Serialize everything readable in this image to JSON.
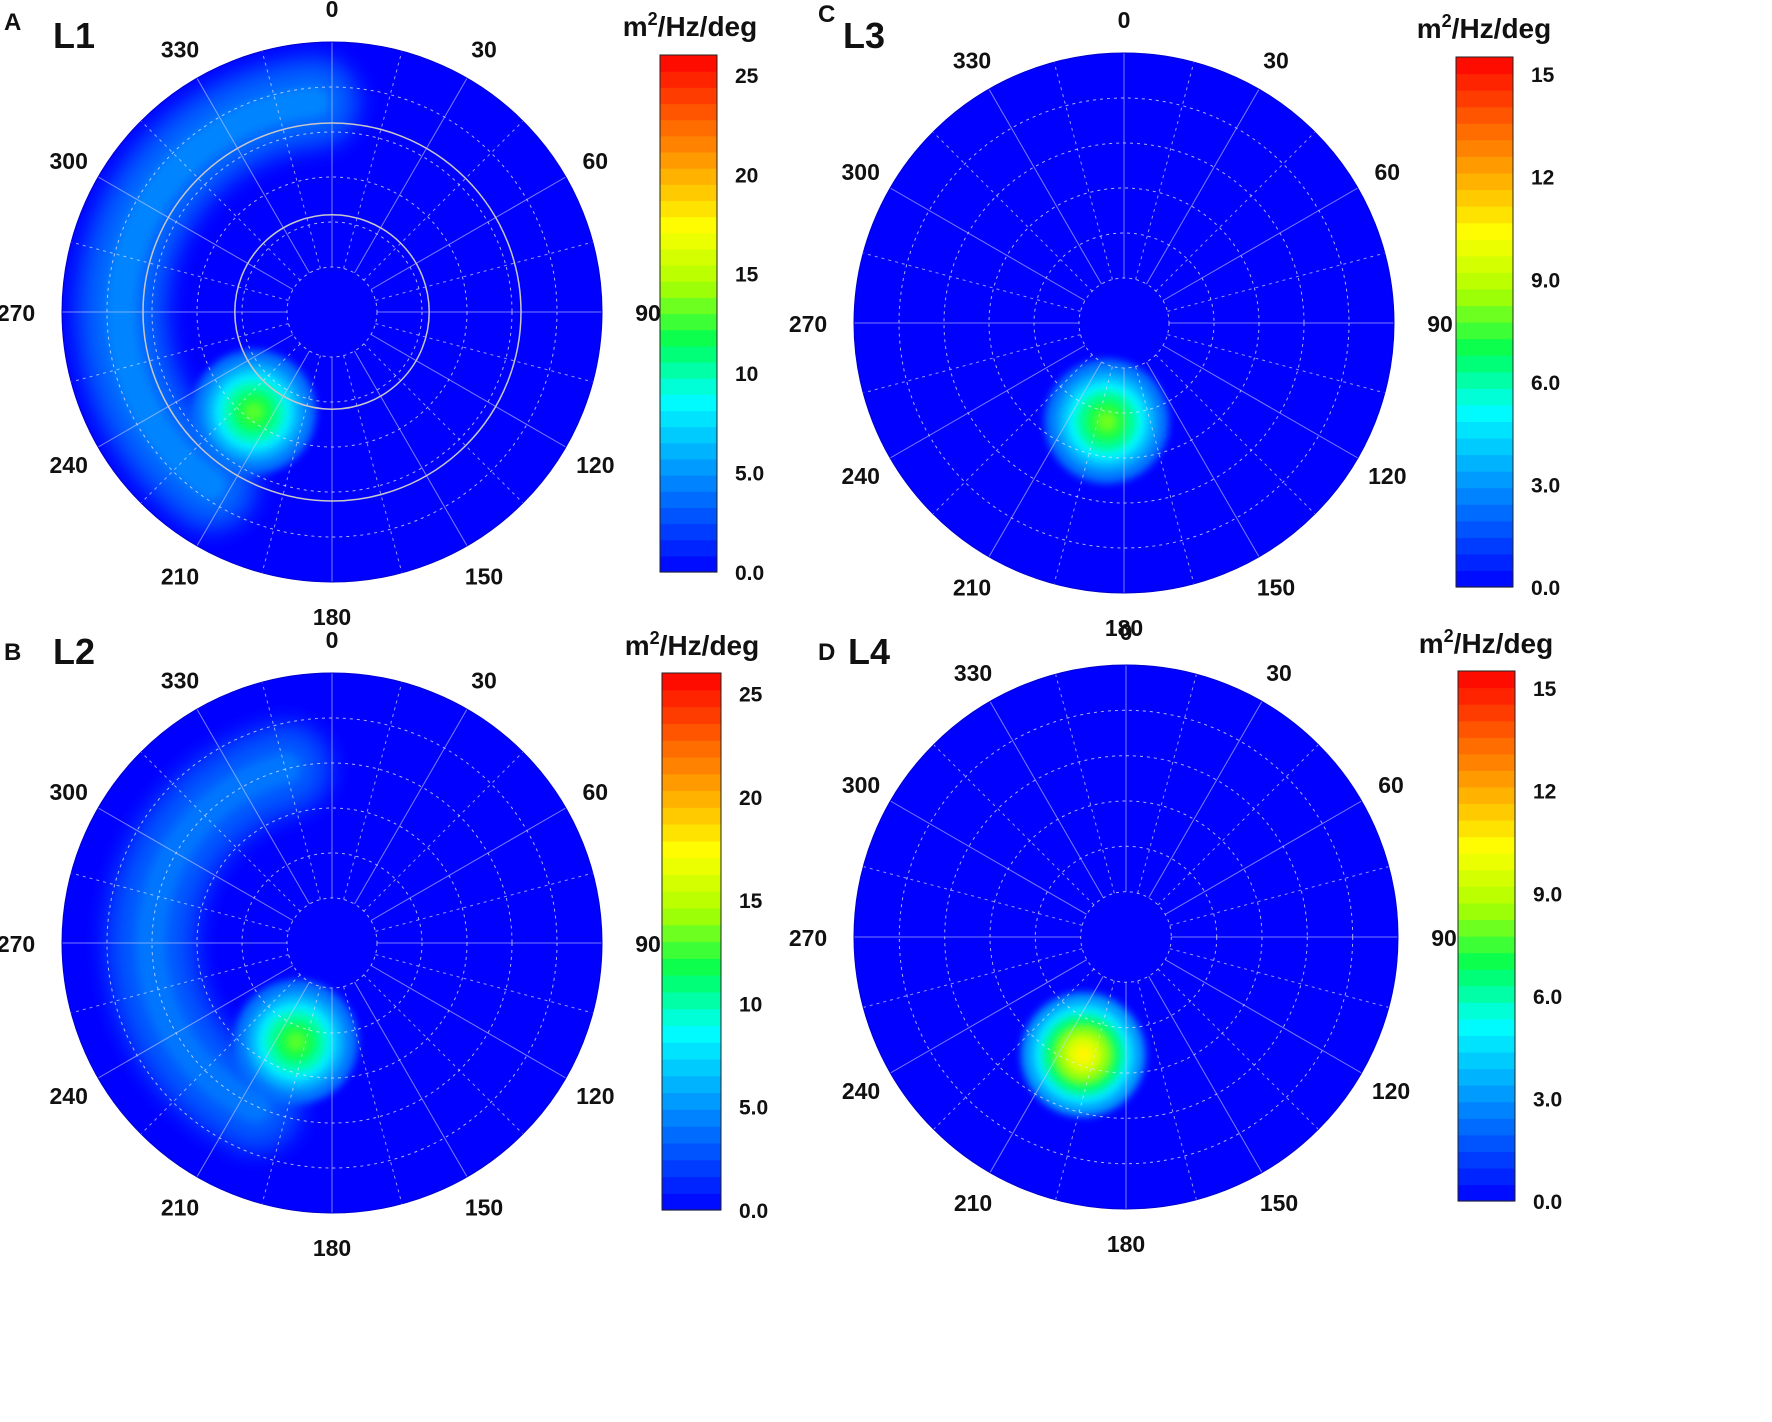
{
  "figure": {
    "colormap": [
      "#0000ff",
      "#0055ff",
      "#00aaff",
      "#00ffff",
      "#00ff55",
      "#aaff00",
      "#ffff00",
      "#ffaa00",
      "#ff5500",
      "#ff0000"
    ],
    "ring_color": "#c8c8c8"
  },
  "chart_data": [
    {
      "type": "heatmap",
      "subtype": "polar-directional-spectrum",
      "panel_letter": "A",
      "title": "L1",
      "colorbar_label": {
        "prefix": "m",
        "superscript": "2",
        "suffix": "/Hz/deg"
      },
      "colorbar_range": [
        0,
        26
      ],
      "colorbar_ticks": [
        {
          "value": 0,
          "label": "0.0"
        },
        {
          "value": 5,
          "label": "5.0"
        },
        {
          "value": 10,
          "label": "10"
        },
        {
          "value": 15,
          "label": "15"
        },
        {
          "value": 20,
          "label": "20"
        },
        {
          "value": 25,
          "label": "25"
        }
      ],
      "direction_ticks": [
        "0",
        "30",
        "60",
        "90",
        "120",
        "150",
        "180",
        "210",
        "240",
        "270",
        "300",
        "330"
      ],
      "peak": {
        "direction_deg": 218,
        "radius_fraction": 0.47,
        "value": 13
      },
      "arc": {
        "start_deg": 215,
        "end_deg": 355,
        "radius_fraction": 0.78,
        "value": 4.5
      },
      "overlay_ring_fractions": [
        0.36,
        0.7
      ]
    },
    {
      "type": "heatmap",
      "subtype": "polar-directional-spectrum",
      "panel_letter": "B",
      "title": "L2",
      "colorbar_label": {
        "prefix": "m",
        "superscript": "2",
        "suffix": "/Hz/deg"
      },
      "colorbar_range": [
        0,
        26
      ],
      "colorbar_ticks": [
        {
          "value": 0,
          "label": "0.0"
        },
        {
          "value": 5,
          "label": "5.0"
        },
        {
          "value": 10,
          "label": "10"
        },
        {
          "value": 15,
          "label": "15"
        },
        {
          "value": 20,
          "label": "20"
        },
        {
          "value": 25,
          "label": "25"
        }
      ],
      "direction_ticks": [
        "0",
        "30",
        "60",
        "90",
        "120",
        "150",
        "180",
        "210",
        "240",
        "270",
        "300",
        "330"
      ],
      "peak": {
        "direction_deg": 200,
        "radius_fraction": 0.39,
        "value": 13
      },
      "arc": {
        "start_deg": 205,
        "end_deg": 345,
        "radius_fraction": 0.67,
        "value": 4
      },
      "overlay_ring_fractions": []
    },
    {
      "type": "heatmap",
      "subtype": "polar-directional-spectrum",
      "panel_letter": "C",
      "title": "L3",
      "colorbar_label": {
        "prefix": "m",
        "superscript": "2",
        "suffix": "/Hz/deg"
      },
      "colorbar_range": [
        0,
        15.5
      ],
      "colorbar_ticks": [
        {
          "value": 0,
          "label": "0.0"
        },
        {
          "value": 3,
          "label": "3.0"
        },
        {
          "value": 6,
          "label": "6.0"
        },
        {
          "value": 9,
          "label": "9.0"
        },
        {
          "value": 12,
          "label": "12"
        },
        {
          "value": 15,
          "label": "15"
        }
      ],
      "direction_ticks": [
        "0",
        "30",
        "60",
        "90",
        "120",
        "150",
        "180",
        "210",
        "240",
        "270",
        "300",
        "330"
      ],
      "peak": {
        "direction_deg": 190,
        "radius_fraction": 0.37,
        "value": 8
      },
      "arc": null,
      "overlay_ring_fractions": []
    },
    {
      "type": "heatmap",
      "subtype": "polar-directional-spectrum",
      "panel_letter": "D",
      "title": "L4",
      "colorbar_label": {
        "prefix": "m",
        "superscript": "2",
        "suffix": "/Hz/deg"
      },
      "colorbar_range": [
        0,
        15.5
      ],
      "colorbar_ticks": [
        {
          "value": 0,
          "label": "0.0"
        },
        {
          "value": 3,
          "label": "3.0"
        },
        {
          "value": 6,
          "label": "6.0"
        },
        {
          "value": 9,
          "label": "9.0"
        },
        {
          "value": 12,
          "label": "12"
        },
        {
          "value": 15,
          "label": "15"
        }
      ],
      "direction_ticks": [
        "0",
        "30",
        "60",
        "90",
        "120",
        "150",
        "180",
        "210",
        "240",
        "270",
        "300",
        "330"
      ],
      "peak": {
        "direction_deg": 200,
        "radius_fraction": 0.46,
        "value": 10.5
      },
      "arc": null,
      "overlay_ring_fractions": []
    }
  ]
}
